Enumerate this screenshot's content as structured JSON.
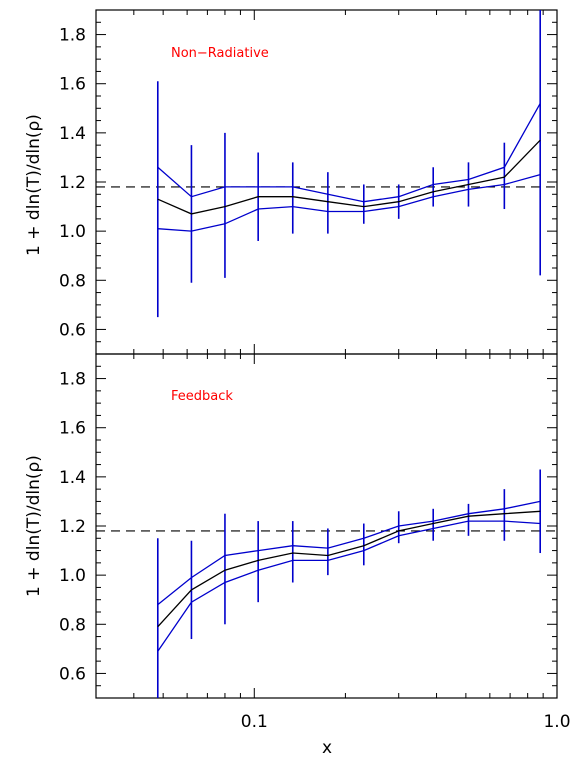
{
  "chart_data": [
    {
      "type": "line",
      "panel": "top",
      "annotation": "Non−Radiative",
      "ylabel": "1 + dln(T)/dln(ρ)",
      "xlabel": "",
      "xscale": "log",
      "xlim": [
        0.03,
        1.0
      ],
      "ylim": [
        0.5,
        1.9
      ],
      "x": [
        0.048,
        0.062,
        0.08,
        0.103,
        0.134,
        0.175,
        0.23,
        0.3,
        0.39,
        0.51,
        0.67,
        0.88
      ],
      "series": [
        {
          "role": "mean",
          "color": "#000000",
          "values": [
            1.13,
            1.07,
            1.1,
            1.14,
            1.14,
            1.12,
            1.1,
            1.12,
            1.16,
            1.19,
            1.22,
            1.37
          ]
        },
        {
          "role": "upper",
          "color": "#0000cc",
          "values": [
            1.26,
            1.14,
            1.18,
            1.18,
            1.18,
            1.15,
            1.12,
            1.14,
            1.19,
            1.21,
            1.26,
            1.52
          ]
        },
        {
          "role": "lower",
          "color": "#0000cc",
          "values": [
            1.01,
            1.0,
            1.03,
            1.09,
            1.1,
            1.08,
            1.08,
            1.1,
            1.14,
            1.17,
            1.19,
            1.23
          ]
        }
      ],
      "error_bars": {
        "color": "#0000cc",
        "low": [
          0.65,
          0.79,
          0.81,
          0.96,
          0.99,
          0.99,
          1.03,
          1.05,
          1.1,
          1.1,
          1.09,
          0.82
        ],
        "high": [
          1.61,
          1.35,
          1.4,
          1.32,
          1.28,
          1.24,
          1.19,
          1.19,
          1.26,
          1.28,
          1.36,
          1.9
        ]
      },
      "reference_line": {
        "y": 1.18,
        "style": "dashed"
      },
      "yticks": [
        0.6,
        0.8,
        1.0,
        1.2,
        1.4,
        1.6,
        1.8
      ],
      "ytick_labels": [
        "0.6",
        "0.8",
        "1.0",
        "1.2",
        "1.4",
        "1.6",
        "1.8"
      ]
    },
    {
      "type": "line",
      "panel": "bottom",
      "annotation": "Feedback",
      "ylabel": "1 + dln(T)/dln(ρ)",
      "xlabel": "x",
      "xscale": "log",
      "xlim": [
        0.03,
        1.0
      ],
      "ylim": [
        0.5,
        1.9
      ],
      "x": [
        0.048,
        0.062,
        0.08,
        0.103,
        0.134,
        0.175,
        0.23,
        0.3,
        0.39,
        0.51,
        0.67,
        0.88
      ],
      "series": [
        {
          "role": "mean",
          "color": "#000000",
          "values": [
            0.79,
            0.94,
            1.02,
            1.06,
            1.09,
            1.08,
            1.12,
            1.18,
            1.21,
            1.24,
            1.25,
            1.26
          ]
        },
        {
          "role": "upper",
          "color": "#0000cc",
          "values": [
            0.88,
            0.99,
            1.08,
            1.1,
            1.12,
            1.11,
            1.15,
            1.2,
            1.22,
            1.25,
            1.27,
            1.3
          ]
        },
        {
          "role": "lower",
          "color": "#0000cc",
          "values": [
            0.69,
            0.89,
            0.97,
            1.02,
            1.06,
            1.06,
            1.1,
            1.16,
            1.19,
            1.22,
            1.22,
            1.21
          ]
        }
      ],
      "error_bars": {
        "color": "#0000cc",
        "low": [
          0.5,
          0.74,
          0.8,
          0.89,
          0.97,
          1.0,
          1.04,
          1.13,
          1.14,
          1.16,
          1.14,
          1.09
        ],
        "high": [
          1.15,
          1.14,
          1.25,
          1.22,
          1.22,
          1.19,
          1.21,
          1.26,
          1.27,
          1.29,
          1.35,
          1.43
        ]
      },
      "reference_line": {
        "y": 1.18,
        "style": "dashed"
      },
      "yticks": [
        0.6,
        0.8,
        1.0,
        1.2,
        1.4,
        1.6,
        1.8
      ],
      "ytick_labels": [
        "0.6",
        "0.8",
        "1.0",
        "1.2",
        "1.4",
        "1.6",
        "1.8"
      ],
      "xticks": [
        0.1,
        1.0
      ],
      "xtick_labels": [
        "0.1",
        "1.0"
      ]
    }
  ],
  "colors": {
    "annotation": "#ff0000",
    "series_blue": "#0000cc",
    "series_black": "#000000",
    "axes": "#000000"
  }
}
